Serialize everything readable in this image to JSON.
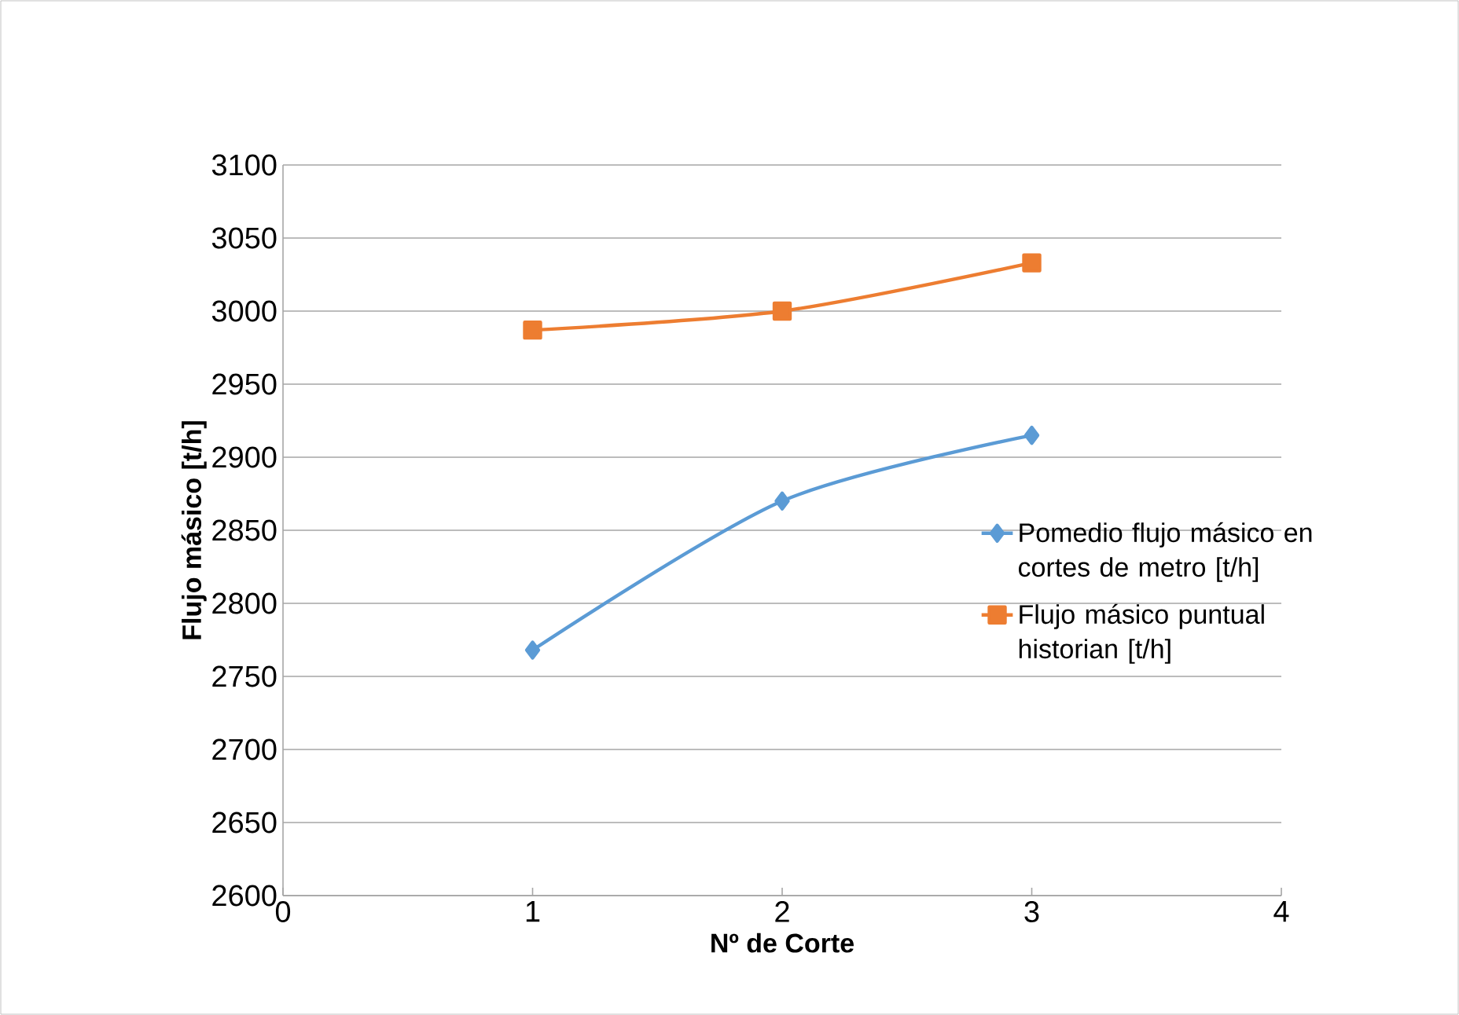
{
  "chart_data": {
    "type": "line",
    "xlabel": "Nº de Corte",
    "ylabel": "Flujo másico [t/h]",
    "x": [
      1,
      2,
      3
    ],
    "series": [
      {
        "name": "Pomedio flujo másico en cortes de metro [t/h]",
        "color": "#5b9bd5",
        "marker": "diamond",
        "values": [
          2768,
          2870,
          2915
        ]
      },
      {
        "name": "Flujo másico puntual historian [t/h]",
        "color": "#ed7d31",
        "marker": "square",
        "values": [
          2987,
          3000,
          3033
        ]
      }
    ],
    "xlim": [
      0,
      4
    ],
    "xticks": [
      0,
      1,
      2,
      3,
      4
    ],
    "ylim": [
      2600,
      3100
    ],
    "yticks": [
      2600,
      2650,
      2700,
      2750,
      2800,
      2850,
      2900,
      2950,
      3000,
      3050,
      3100
    ],
    "grid": "y",
    "legend": "right",
    "line_style": "solid"
  }
}
